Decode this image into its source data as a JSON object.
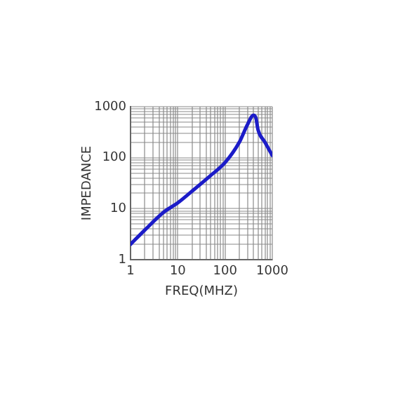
{
  "chart_data": {
    "type": "line",
    "xlabel": "FREQ(MHZ)",
    "ylabel": "IMPEDANCE",
    "log": "xy",
    "grid": true,
    "marker": "none",
    "line_style": "solid",
    "xlim": [
      1,
      1000
    ],
    "ylim": [
      1,
      1000
    ],
    "xticks": [
      1,
      {
        "value": 2,
        "label": null
      },
      {
        "value": 3,
        "label": null
      },
      {
        "value": 4,
        "label": null
      },
      {
        "value": 5,
        "label": null
      },
      {
        "value": 6,
        "label": null
      },
      {
        "value": 7,
        "label": null
      },
      {
        "value": 8,
        "label": null
      },
      {
        "value": 9,
        "label": null
      },
      10,
      {
        "value": 20,
        "label": null
      },
      {
        "value": 30,
        "label": null
      },
      {
        "value": 40,
        "label": null
      },
      {
        "value": 50,
        "label": null
      },
      {
        "value": 60,
        "label": null
      },
      {
        "value": 70,
        "label": null
      },
      {
        "value": 80,
        "label": null
      },
      {
        "value": 90,
        "label": null
      },
      100,
      {
        "value": 200,
        "label": null
      },
      {
        "value": 300,
        "label": null
      },
      {
        "value": 400,
        "label": null
      },
      {
        "value": 500,
        "label": null
      },
      {
        "value": 600,
        "label": null
      },
      {
        "value": 700,
        "label": null
      },
      {
        "value": 800,
        "label": null
      },
      {
        "value": 900,
        "label": null
      },
      1000
    ],
    "yticks": [
      1,
      {
        "value": 2,
        "label": null
      },
      {
        "value": 3,
        "label": null
      },
      {
        "value": 4,
        "label": null
      },
      {
        "value": 5,
        "label": null
      },
      {
        "value": 6,
        "label": null
      },
      {
        "value": 7,
        "label": null
      },
      {
        "value": 8,
        "label": null
      },
      {
        "value": 9,
        "label": null
      },
      10,
      {
        "value": 20,
        "label": null
      },
      {
        "value": 30,
        "label": null
      },
      {
        "value": 40,
        "label": null
      },
      {
        "value": 50,
        "label": null
      },
      {
        "value": 60,
        "label": null
      },
      {
        "value": 70,
        "label": null
      },
      {
        "value": 80,
        "label": null
      },
      {
        "value": 90,
        "label": null
      },
      100,
      {
        "value": 200,
        "label": null
      },
      {
        "value": 300,
        "label": null
      },
      {
        "value": 400,
        "label": null
      },
      {
        "value": 500,
        "label": null
      },
      {
        "value": 600,
        "label": null
      },
      {
        "value": 700,
        "label": null
      },
      {
        "value": 800,
        "label": null
      },
      {
        "value": 900,
        "label": null
      },
      1000
    ],
    "series": [
      {
        "color": "#1c1cc8",
        "x": [
          1,
          2,
          5,
          10,
          20,
          50,
          100,
          200,
          300,
          400,
          450,
          500,
          700,
          1000
        ],
        "values": [
          2,
          3.8,
          8.5,
          13,
          22,
          45,
          80,
          200,
          450,
          680,
          600,
          350,
          200,
          110
        ]
      }
    ]
  }
}
